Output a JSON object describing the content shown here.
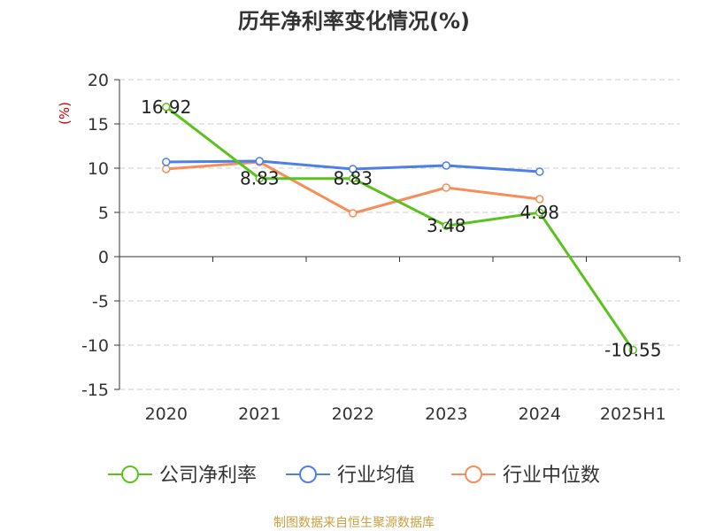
{
  "chart_data": {
    "type": "line",
    "title": "历年净利率变化情况(%)",
    "ylabel": "(%)",
    "xlabel": "",
    "categories": [
      "2020",
      "2021",
      "2022",
      "2023",
      "2024",
      "2025H1"
    ],
    "ylim": [
      -15,
      20
    ],
    "yticks": [
      20,
      15,
      10,
      5,
      0,
      -5,
      -10,
      -15
    ],
    "ytick_labels": [
      "20",
      "15",
      "10",
      "5",
      "0",
      "-5",
      "-10",
      "-15"
    ],
    "grid": true,
    "legend_position": "bottom",
    "series": [
      {
        "name": "公司净利率",
        "color": "#5bc21d",
        "values": [
          16.92,
          8.83,
          8.83,
          3.48,
          4.98,
          -10.55
        ],
        "labels": [
          "16.92",
          "8.83",
          "8.83",
          "3.48",
          "4.98",
          "-10.55"
        ]
      },
      {
        "name": "行业均值",
        "color": "#4d80e6",
        "values": [
          10.7,
          10.8,
          9.9,
          10.3,
          9.6,
          null
        ]
      },
      {
        "name": "行业中位数",
        "color": "#f78d5a",
        "values": [
          9.9,
          10.7,
          4.9,
          7.8,
          6.5,
          null
        ]
      }
    ]
  },
  "source_note": "制图数据来自恒生聚源数据库"
}
